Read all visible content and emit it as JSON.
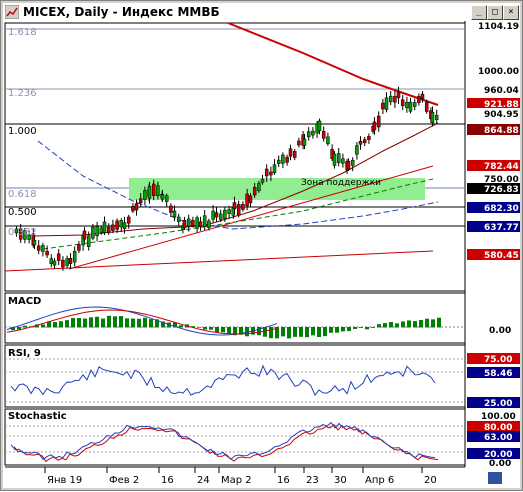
{
  "window": {
    "title": "MICEX, Daily - Индекс ММВБ",
    "min_glyph": "_",
    "max_glyph": "□",
    "close_glyph": "×"
  },
  "price_panel": {
    "fib_labels": [
      "1.618",
      "1.236",
      "1.000",
      "0.618",
      "0.500",
      "0.382"
    ],
    "axis_ticks": [
      "1104.19",
      "1000.00",
      "750.00"
    ],
    "price_tags": [
      {
        "text": "960.04",
        "color": "#000000",
        "bg": "#ffffff"
      },
      {
        "text": "921.88",
        "color": "#ffffff",
        "bg": "#cc0000"
      },
      {
        "text": "904.95",
        "color": "#000000",
        "bg": "#ffffff"
      },
      {
        "text": "864.88",
        "color": "#ffffff",
        "bg": "#8b0000"
      },
      {
        "text": "782.44",
        "color": "#ffffff",
        "bg": "#cc0000"
      },
      {
        "text": "726.83",
        "color": "#ffffff",
        "bg": "#000000"
      },
      {
        "text": "682.30",
        "color": "#ffffff",
        "bg": "#00008b"
      },
      {
        "text": "637.77",
        "color": "#ffffff",
        "bg": "#00008b"
      },
      {
        "text": "580.45",
        "color": "#ffffff",
        "bg": "#cc0000"
      }
    ],
    "zone_label": "Зона поддержки"
  },
  "macd_panel": {
    "name": "MACD",
    "axis_tick": "0.00"
  },
  "rsi_panel": {
    "name": "RSI, 9",
    "axis_ticks": [
      "75.00",
      "58.46",
      "25.00"
    ]
  },
  "stoch_panel": {
    "name": "Stochastic",
    "axis_ticks": [
      "100.00",
      "80.00",
      "63.00",
      "20.00",
      "0.00"
    ]
  },
  "x_axis": {
    "labels": [
      "Янв 19",
      "Фев 2",
      "16",
      "24",
      "Мар 2",
      "16",
      "23",
      "30",
      "Апр 6",
      "20"
    ]
  },
  "colors": {
    "candle_up": "#00a000",
    "candle_down": "#cc0000",
    "zone": "#90ee90"
  }
}
